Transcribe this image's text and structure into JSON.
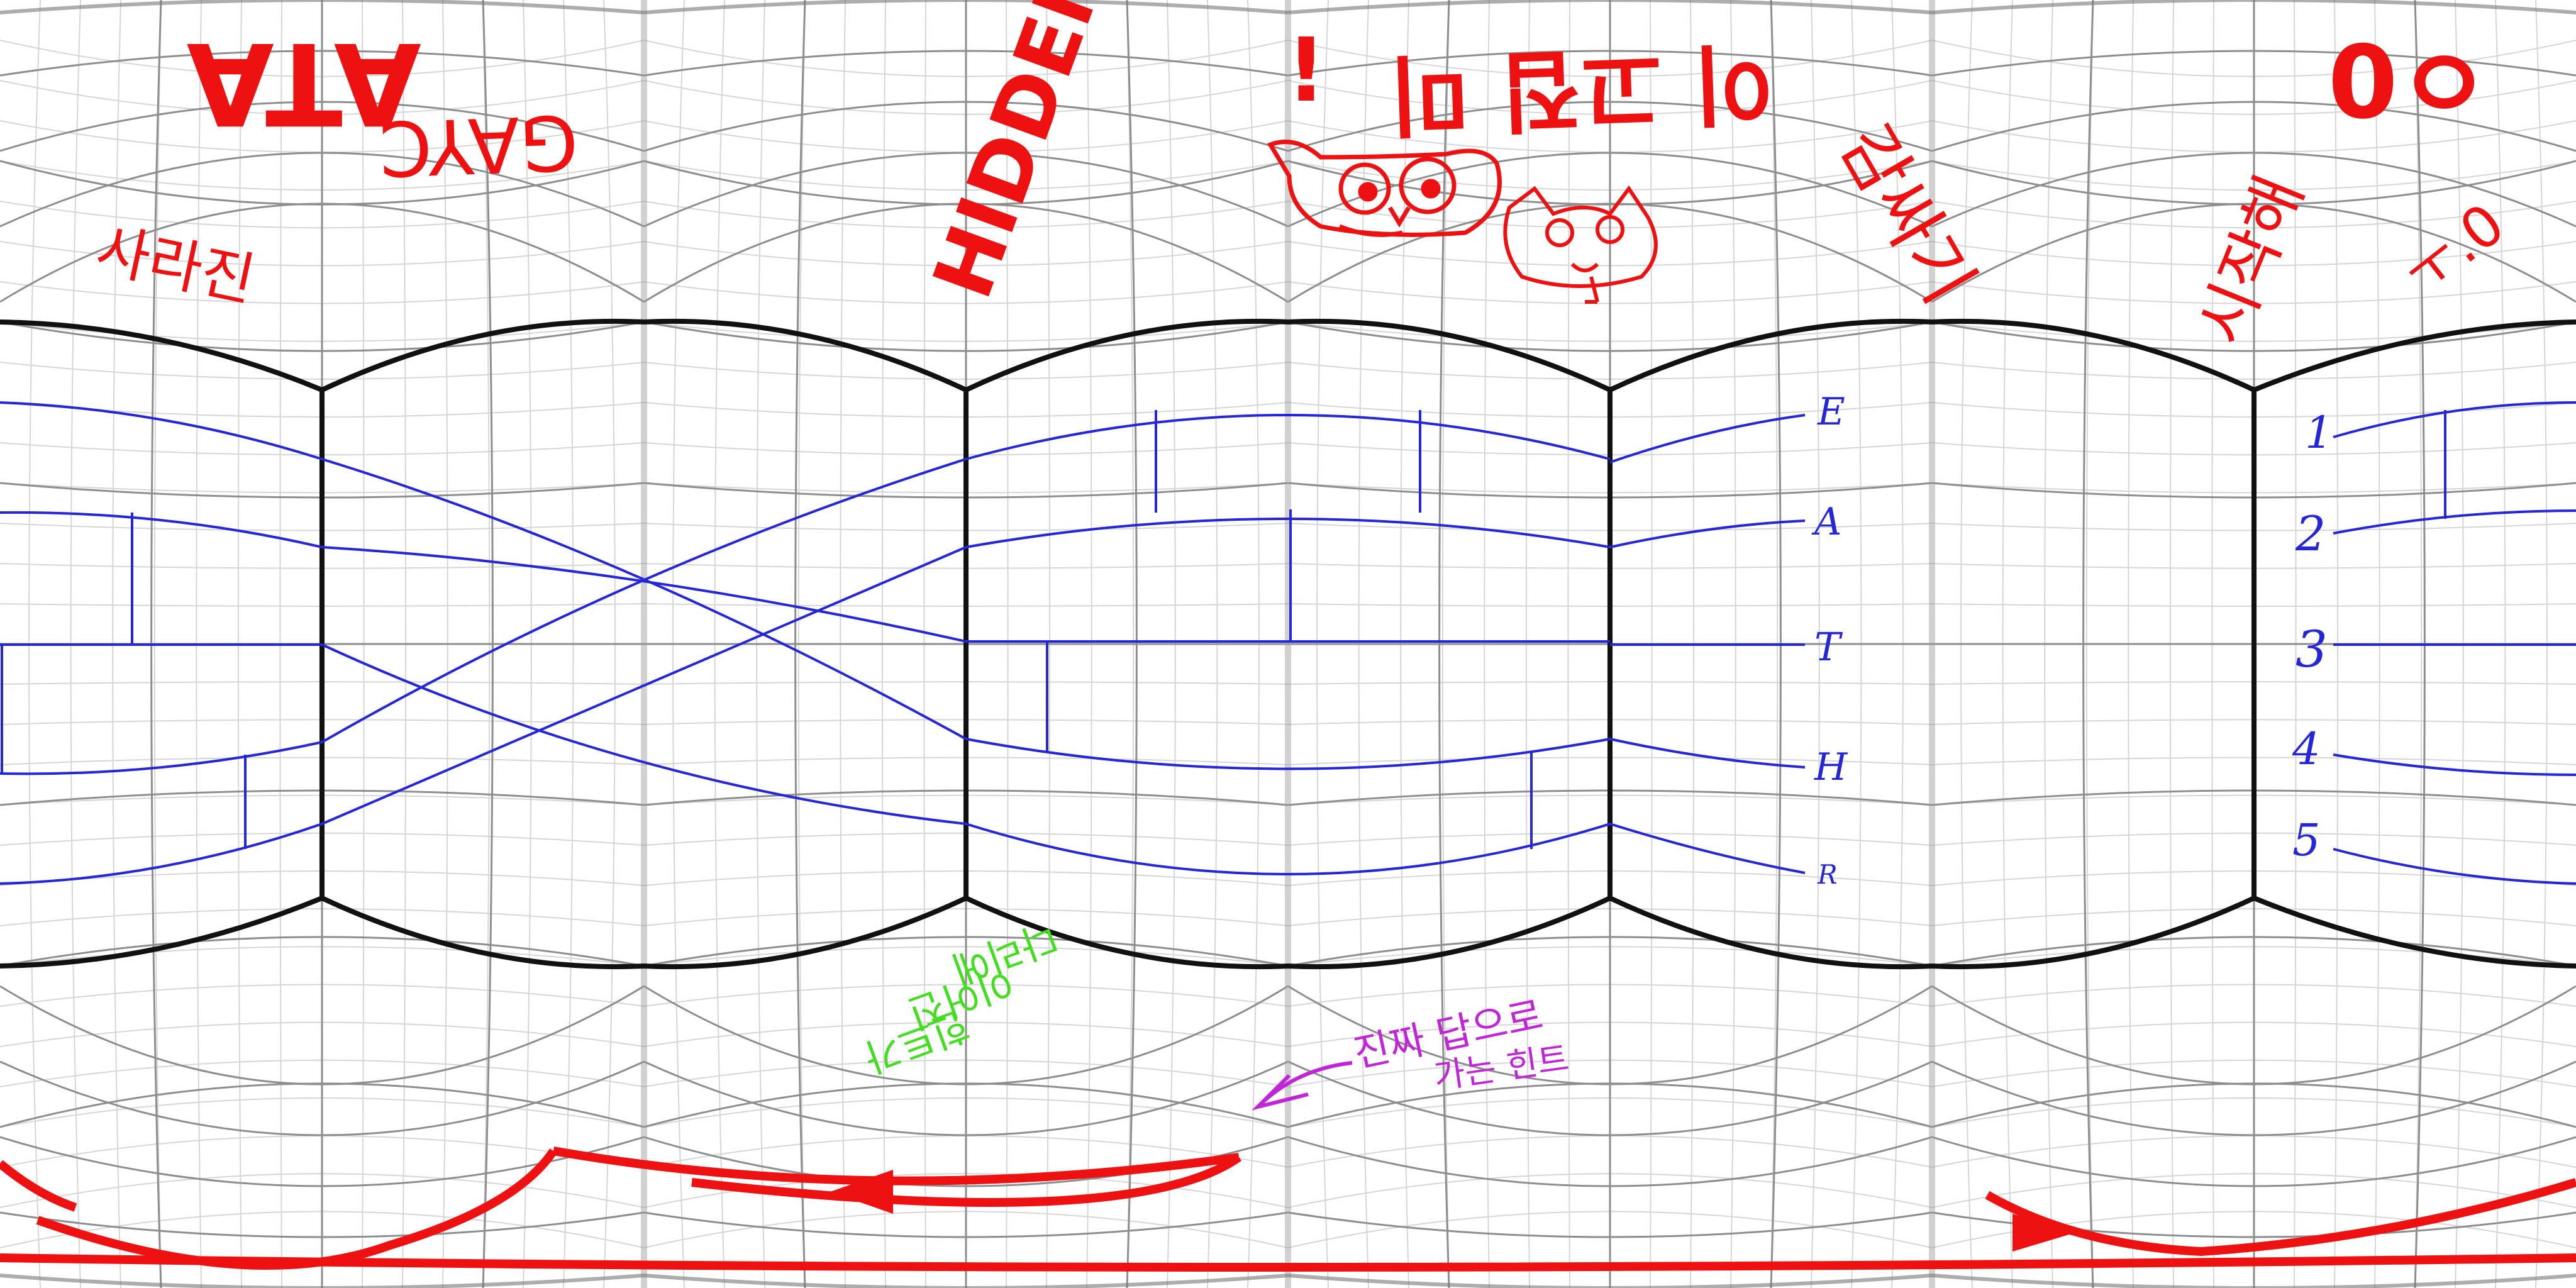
{
  "colors": {
    "background": "#ffffff",
    "grid_minor": "#d4d4d4",
    "grid_major": "#8a8a8a",
    "frame": "#111111",
    "ladder": "#2626d9",
    "red_ink": "#ee1111",
    "green_ink": "#44dd22",
    "magenta_ink": "#c125d8"
  },
  "red_text": {
    "top_left_1": "ATA",
    "top_left_2": "GAYC",
    "top_left_3": "사라진",
    "hidden": "HIDDEN",
    "top_mid": "이 고집 미",
    "top_mid_2": "감싸기",
    "top_right_1": "ㅇ0",
    "top_right_2": "시작해",
    "top_right_3": "ㅜ.0",
    "exclaim": "!"
  },
  "ladder": {
    "left_labels": [
      "E",
      "A",
      "T",
      "H",
      "R"
    ],
    "right_labels": [
      "1",
      "2",
      "3",
      "4",
      "5"
    ]
  },
  "green_note": {
    "line1": "다리에",
    "line2": "이어진",
    "line3": "힌트가"
  },
  "magenta_note": {
    "line1": "진짜 답으로",
    "line2": "가는 힌트"
  },
  "icons": {
    "owl": "owl-doodle-icon",
    "cat": "cat-doodle-icon",
    "arrow": "arrow-icon"
  }
}
